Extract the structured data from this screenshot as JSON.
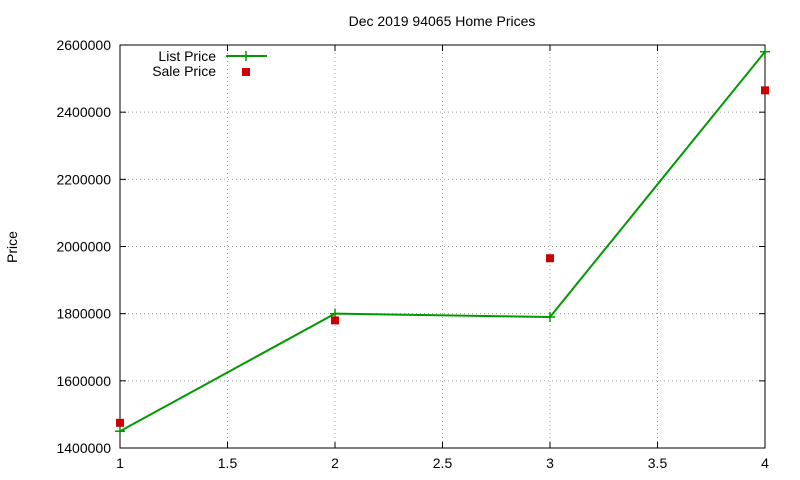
{
  "chart_data": {
    "type": "line",
    "title": "Dec 2019 94065 Home Prices",
    "xlabel": "",
    "ylabel": "Price",
    "xlim": [
      1,
      4
    ],
    "ylim": [
      1400000,
      2600000
    ],
    "x_ticks": [
      1,
      1.5,
      2,
      2.5,
      3,
      3.5,
      4
    ],
    "x_tick_labels": [
      "1",
      "1.5",
      "2",
      "2.5",
      "3",
      "3.5",
      "4"
    ],
    "y_ticks": [
      1400000,
      1600000,
      1800000,
      2000000,
      2200000,
      2400000,
      2600000
    ],
    "y_tick_labels": [
      "1400000",
      "1600000",
      "1800000",
      "2000000",
      "2200000",
      "2400000",
      "2600000"
    ],
    "grid": true,
    "legend_position": "top-left",
    "series": [
      {
        "name": "List Price",
        "style": "line+cross",
        "color": "#009900",
        "x": [
          1,
          2,
          3,
          4
        ],
        "values": [
          1450000,
          1800000,
          1790000,
          2580000
        ]
      },
      {
        "name": "Sale Price",
        "style": "square-markers",
        "color": "#cc0000",
        "x": [
          1,
          2,
          3,
          4
        ],
        "values": [
          1475000,
          1780000,
          1965000,
          2465000
        ]
      }
    ]
  }
}
